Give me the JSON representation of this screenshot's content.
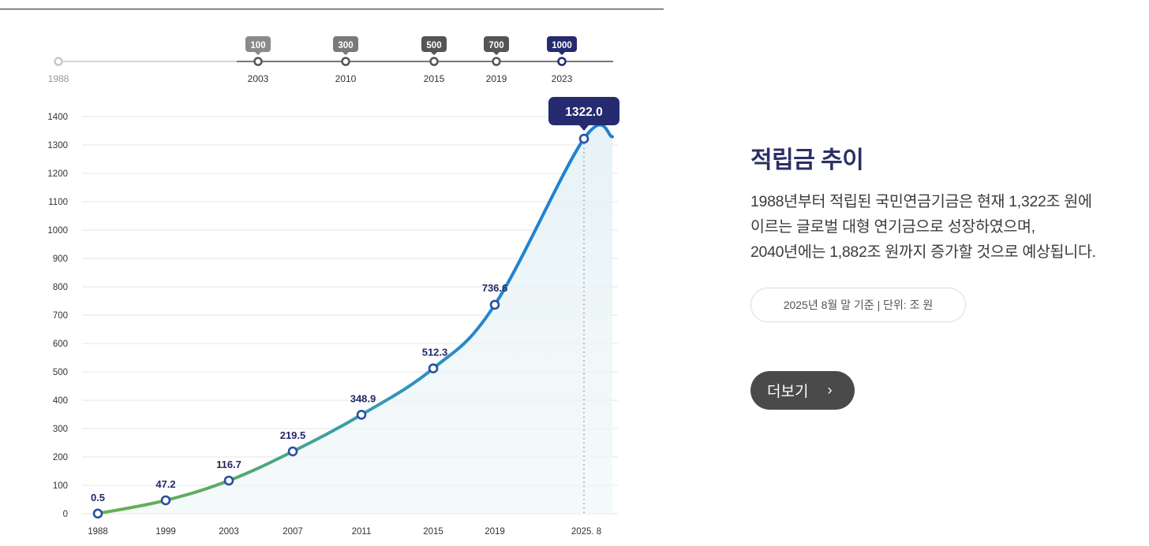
{
  "colors": {
    "navy": "#262a6e",
    "line_green": "#6ab04c",
    "line_blue": "#1f7fd0",
    "grid": "#e6e6e6"
  },
  "timeline": {
    "start_year": "1988",
    "milestones": [
      {
        "year": "2003",
        "badge": "100",
        "color": "#8a8a8a"
      },
      {
        "year": "2010",
        "badge": "300",
        "color": "#7a7a7a"
      },
      {
        "year": "2015",
        "badge": "500",
        "color": "#555555"
      },
      {
        "year": "2019",
        "badge": "700",
        "color": "#555555"
      },
      {
        "year": "2023",
        "badge": "1000",
        "color": "#262a6e"
      }
    ]
  },
  "chart_data": {
    "type": "line",
    "title": "적립금 추이",
    "xlabel": "",
    "ylabel": "",
    "ylim": [
      0,
      1400
    ],
    "yticks": [
      0,
      100,
      200,
      300,
      400,
      500,
      600,
      700,
      800,
      900,
      1000,
      1100,
      1200,
      1300,
      1400
    ],
    "categories": [
      "1988",
      "1999",
      "2003",
      "2007",
      "2011",
      "2015",
      "2019",
      "2025. 8"
    ],
    "values": [
      0.5,
      47.2,
      116.7,
      219.5,
      348.9,
      512.3,
      736.6,
      1322.0
    ],
    "labels": [
      "0.5",
      "47.2",
      "116.7",
      "219.5",
      "348.9",
      "512.3",
      "736.6",
      "1322.0"
    ],
    "highlight_index": 7,
    "grid": true
  },
  "side": {
    "title": "적립금 추이",
    "lines": [
      "1988년부터 적립된 국민연금기금은 현재 1,322조 원에",
      "이르는 글로벌 대형 연기금으로 성장하였으며,",
      "2040년에는 1,882조 원까지 증가할 것으로 예상됩니다."
    ],
    "basis": "2025년 8월 말 기준 | 단위: 조 원",
    "more_label": "더보기",
    "more_icon": "chevron-right-icon"
  }
}
